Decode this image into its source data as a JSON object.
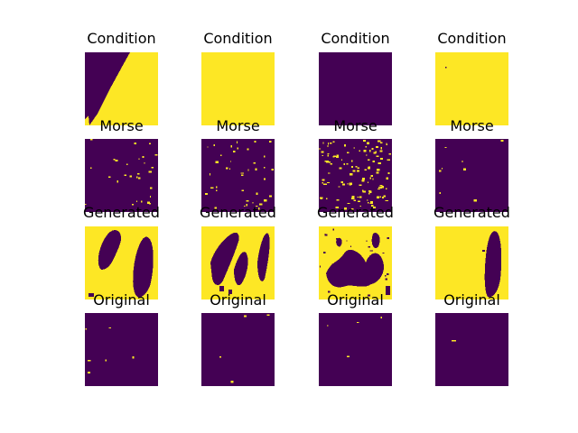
{
  "colors": {
    "low": "#440154",
    "high": "#fde725",
    "background": "#ffffff",
    "text": "#000000"
  },
  "rows": [
    {
      "title": "Condition"
    },
    {
      "title": "Morse"
    },
    {
      "title": "Generated"
    },
    {
      "title": "Original"
    }
  ]
}
